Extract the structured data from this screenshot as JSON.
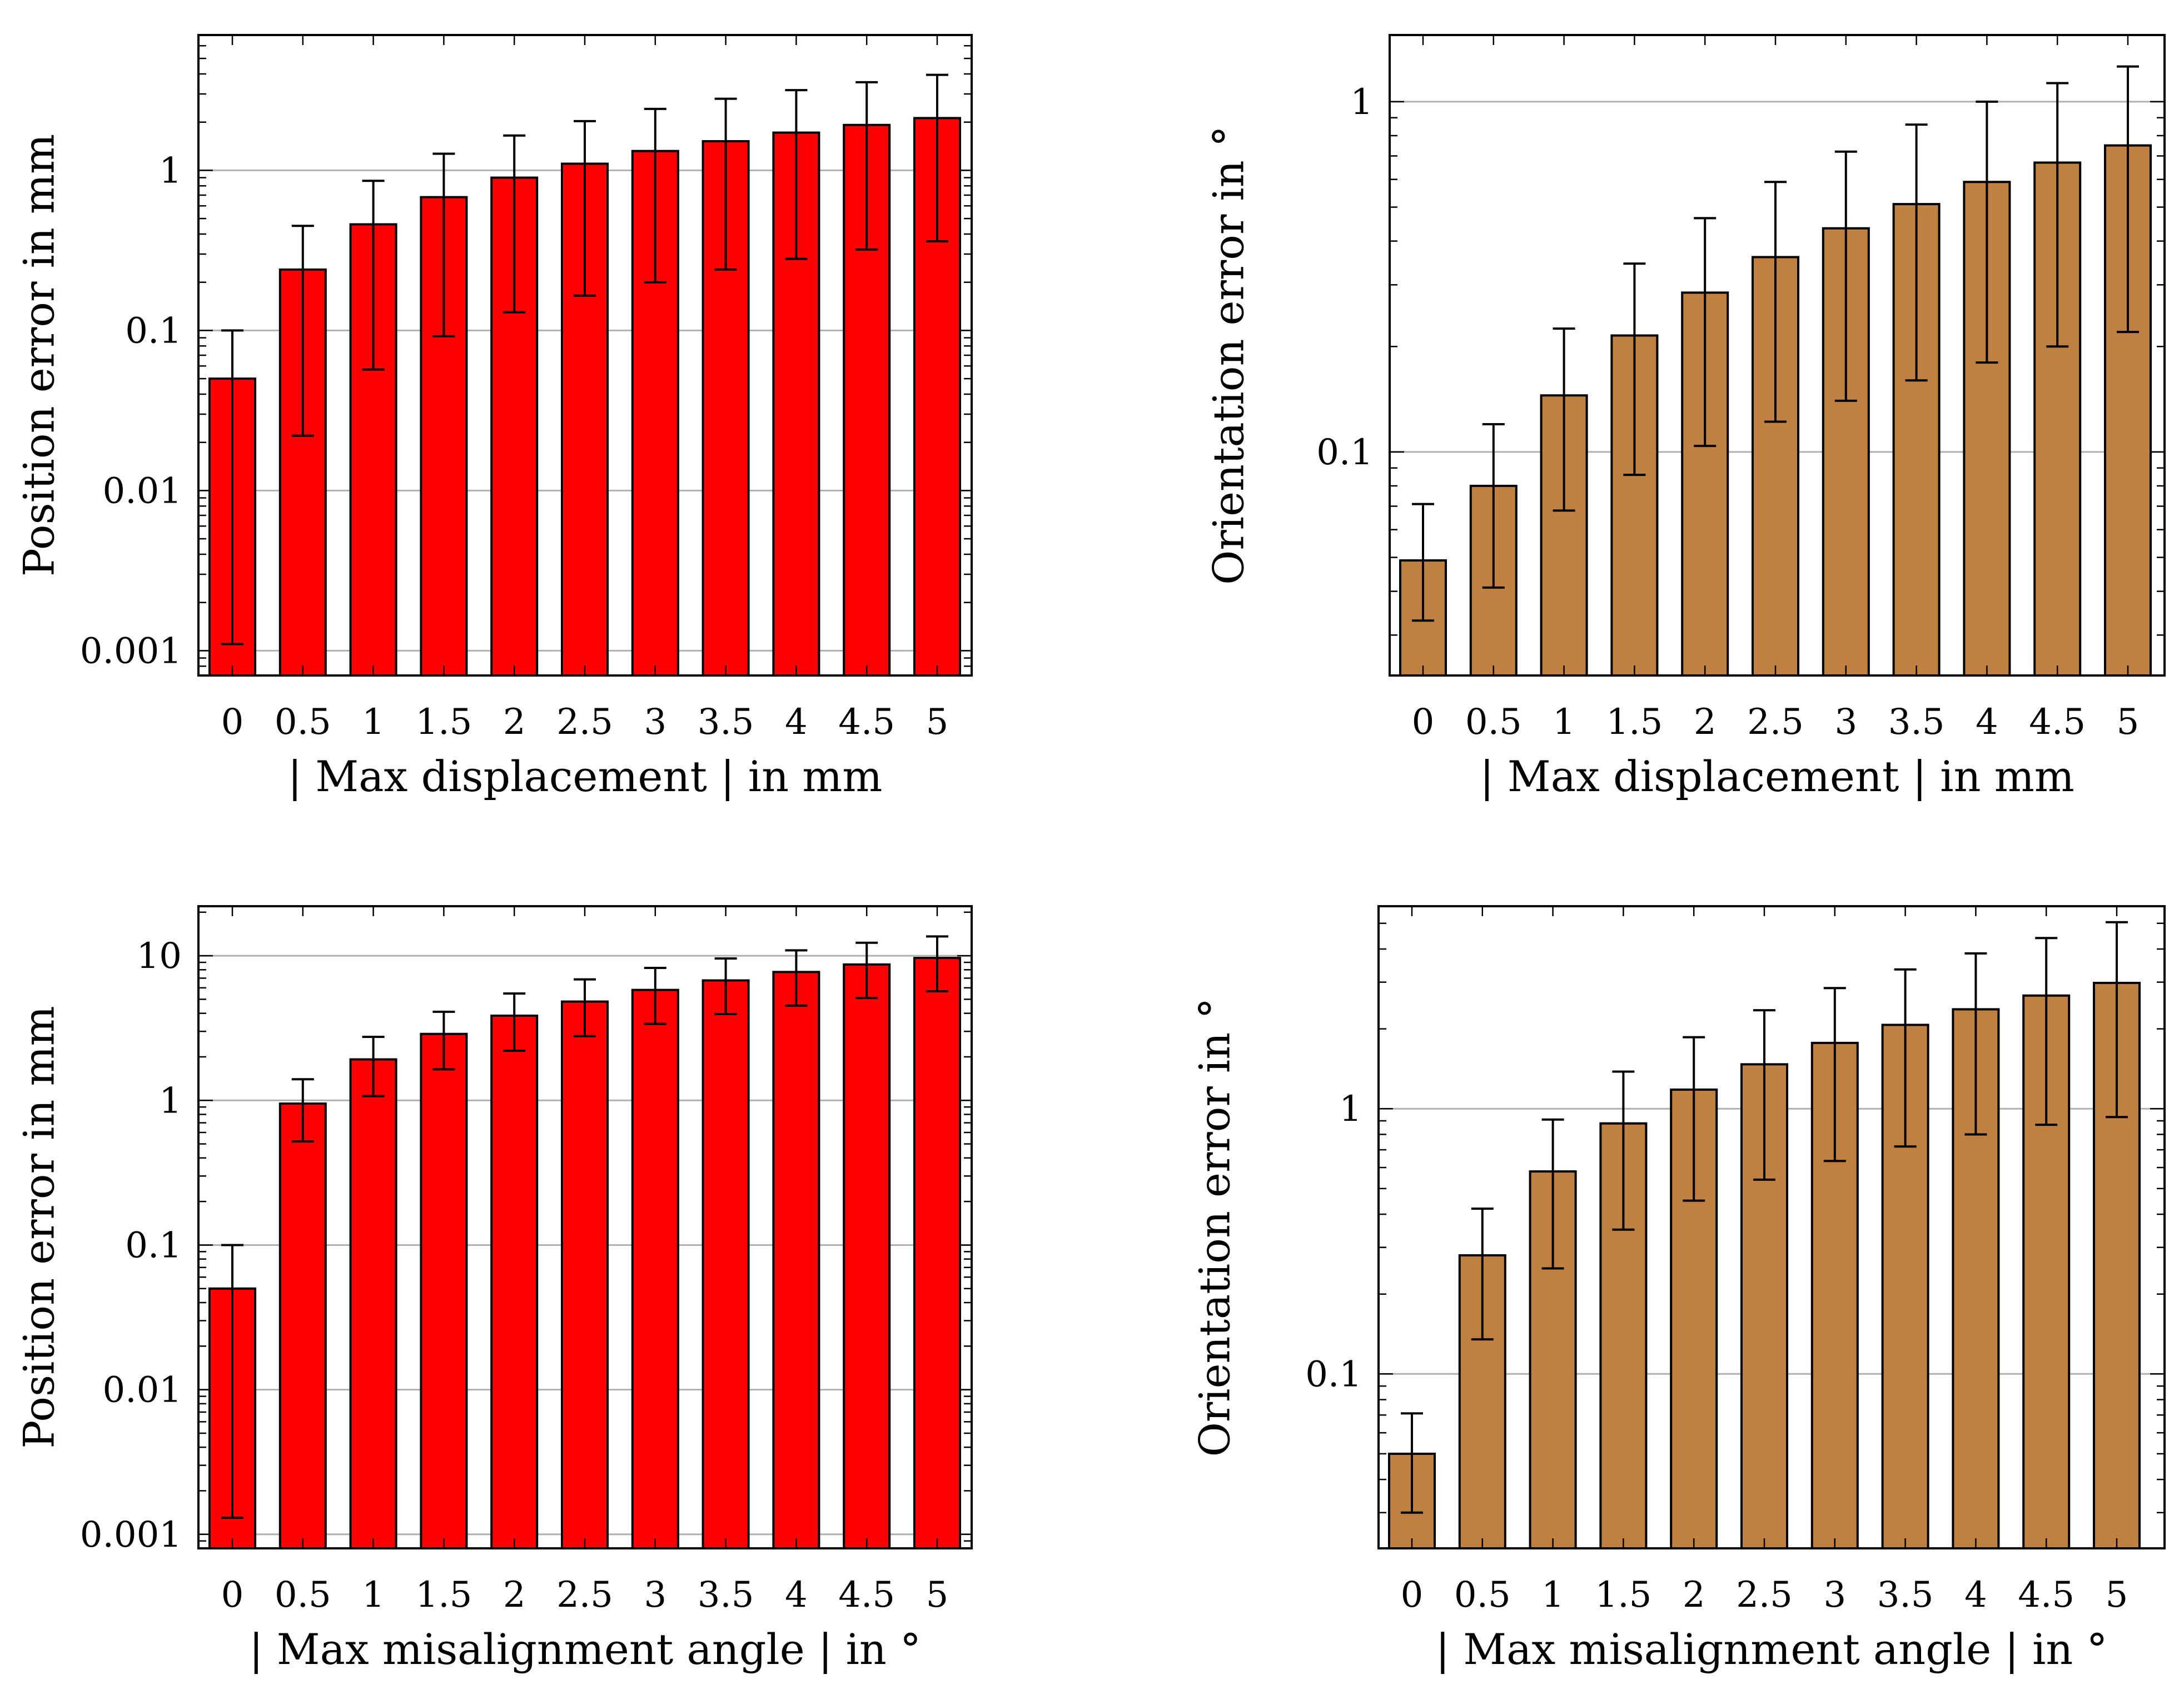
{
  "chart_data": [
    {
      "id": "pos-disp",
      "type": "bar",
      "scale": "log",
      "bar_color": "#ff0000",
      "categories": [
        "0",
        "0.5",
        "1",
        "1.5",
        "2",
        "2.5",
        "3",
        "3.5",
        "4",
        "4.5",
        "5"
      ],
      "series": [
        {
          "name": "Position error",
          "values": [
            0.05,
            0.24,
            0.46,
            0.68,
            0.9,
            1.1,
            1.32,
            1.52,
            1.72,
            1.92,
            2.12
          ],
          "err_low": [
            0.0011,
            0.022,
            0.057,
            0.092,
            0.13,
            0.165,
            0.2,
            0.24,
            0.28,
            0.32,
            0.36
          ],
          "err_high": [
            0.1,
            0.45,
            0.86,
            1.27,
            1.65,
            2.03,
            2.42,
            2.8,
            3.17,
            3.55,
            3.95
          ]
        }
      ],
      "ylim": [
        0.0007,
        7
      ],
      "yticks": [
        0.001,
        0.01,
        0.1,
        1
      ],
      "ytick_labels": [
        "0.001",
        "0.01",
        "0.1",
        "1"
      ],
      "xlabel": "| Max displacement |  in mm",
      "ylabel": "Position error in mm"
    },
    {
      "id": "ori-disp",
      "type": "bar",
      "scale": "log",
      "bar_color": "#c08040",
      "categories": [
        "0",
        "0.5",
        "1",
        "1.5",
        "2",
        "2.5",
        "3",
        "3.5",
        "4",
        "4.5",
        "5"
      ],
      "series": [
        {
          "name": "Orientation error",
          "values": [
            0.049,
            0.08,
            0.145,
            0.215,
            0.285,
            0.36,
            0.435,
            0.51,
            0.59,
            0.67,
            0.75
          ],
          "err_low": [
            0.033,
            0.041,
            0.068,
            0.086,
            0.104,
            0.122,
            0.14,
            0.16,
            0.18,
            0.2,
            0.22
          ],
          "err_high": [
            0.071,
            0.12,
            0.225,
            0.345,
            0.465,
            0.59,
            0.72,
            0.86,
            1.0,
            1.13,
            1.26
          ]
        }
      ],
      "ylim": [
        0.023,
        1.55
      ],
      "yticks": [
        0.1,
        1
      ],
      "ytick_labels": [
        "0.1",
        "1"
      ],
      "xlabel": "| Max displacement |  in mm",
      "ylabel": "Orientation error in °"
    },
    {
      "id": "pos-ang",
      "type": "bar",
      "scale": "log",
      "bar_color": "#ff0000",
      "categories": [
        "0",
        "0.5",
        "1",
        "1.5",
        "2",
        "2.5",
        "3",
        "3.5",
        "4",
        "4.5",
        "5"
      ],
      "series": [
        {
          "name": "Position error",
          "values": [
            0.05,
            0.95,
            1.92,
            2.88,
            3.85,
            4.82,
            5.8,
            6.75,
            7.72,
            8.7,
            9.65
          ],
          "err_low": [
            0.0013,
            0.52,
            1.07,
            1.64,
            2.2,
            2.78,
            3.38,
            3.95,
            4.52,
            5.1,
            5.68
          ],
          "err_high": [
            0.1,
            1.4,
            2.75,
            4.1,
            5.48,
            6.86,
            8.24,
            9.57,
            10.9,
            12.3,
            13.6
          ]
        }
      ],
      "ylim": [
        0.0008,
        22
      ],
      "yticks": [
        0.001,
        0.01,
        0.1,
        1,
        10
      ],
      "ytick_labels": [
        "0.001",
        "0.01",
        "0.1",
        "1",
        "10"
      ],
      "xlabel": "| Max misalignment angle |  in °",
      "ylabel": "Position error in mm"
    },
    {
      "id": "ori-ang",
      "type": "bar",
      "scale": "log",
      "bar_color": "#c08040",
      "categories": [
        "0",
        "0.5",
        "1",
        "1.5",
        "2",
        "2.5",
        "3",
        "3.5",
        "4",
        "4.5",
        "5"
      ],
      "series": [
        {
          "name": "Orientation error",
          "values": [
            0.05,
            0.28,
            0.58,
            0.88,
            1.18,
            1.47,
            1.77,
            2.07,
            2.37,
            2.67,
            2.98
          ],
          "err_low": [
            0.03,
            0.135,
            0.25,
            0.35,
            0.45,
            0.54,
            0.635,
            0.72,
            0.8,
            0.87,
            0.93
          ],
          "err_high": [
            0.071,
            0.42,
            0.91,
            1.38,
            1.86,
            2.35,
            2.85,
            3.35,
            3.85,
            4.4,
            5.05
          ]
        }
      ],
      "ylim": [
        0.022,
        5.8
      ],
      "yticks": [
        0.1,
        1
      ],
      "ytick_labels": [
        "0.1",
        "1"
      ],
      "xlabel": "| Max misalignment angle |  in °",
      "ylabel": "Orientation error in °"
    }
  ]
}
